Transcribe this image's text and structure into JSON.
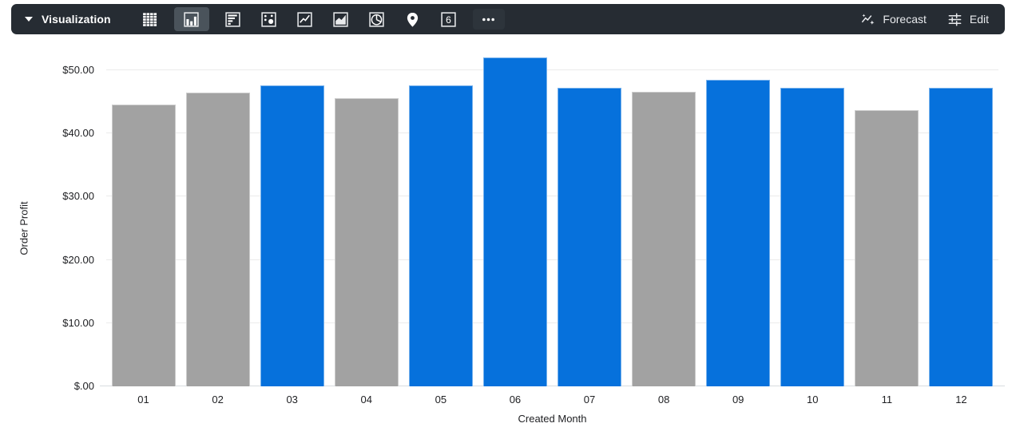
{
  "toolbar": {
    "title": "Visualization",
    "chart_types": [
      {
        "name": "table",
        "selected": false
      },
      {
        "name": "column-chart",
        "selected": true
      },
      {
        "name": "bar-chart",
        "selected": false
      },
      {
        "name": "scatter-chart",
        "selected": false
      },
      {
        "name": "line-chart",
        "selected": false
      },
      {
        "name": "area-chart",
        "selected": false
      },
      {
        "name": "pie-chart",
        "selected": false
      },
      {
        "name": "map",
        "selected": false
      },
      {
        "name": "single-value",
        "selected": false,
        "label": "6"
      },
      {
        "name": "more",
        "selected": false
      }
    ],
    "forecast_label": "Forecast",
    "edit_label": "Edit"
  },
  "chart_data": {
    "type": "bar",
    "title": "",
    "xlabel": "Created Month",
    "ylabel": "Order Profit",
    "categories": [
      "01",
      "02",
      "03",
      "04",
      "05",
      "06",
      "07",
      "08",
      "09",
      "10",
      "11",
      "12"
    ],
    "values": [
      44.5,
      46.4,
      47.6,
      45.5,
      47.6,
      52.0,
      47.2,
      46.6,
      48.5,
      47.2,
      43.6,
      47.2
    ],
    "bar_colors": [
      "#A2A2A2",
      "#A2A2A2",
      "#0671DC",
      "#A2A2A2",
      "#0671DC",
      "#0671DC",
      "#0671DC",
      "#A2A2A2",
      "#0671DC",
      "#0671DC",
      "#A2A2A2",
      "#0671DC"
    ],
    "ylim": [
      0,
      53.5
    ],
    "yticks": [
      {
        "value": 0,
        "label": "$.00"
      },
      {
        "value": 10,
        "label": "$10.00"
      },
      {
        "value": 20,
        "label": "$20.00"
      },
      {
        "value": 30,
        "label": "$30.00"
      },
      {
        "value": 40,
        "label": "$40.00"
      },
      {
        "value": 50,
        "label": "$50.00"
      }
    ],
    "grid": true,
    "legend": "none"
  },
  "colors": {
    "toolbar_bg": "#262C33",
    "selected_icon_bg": "#4A535B",
    "bar_blue": "#0671DC",
    "bar_gray": "#A2A2A2",
    "gridline": "#EBEBEB",
    "axis_line": "#D8DCE0",
    "axis_text": "#202124"
  }
}
